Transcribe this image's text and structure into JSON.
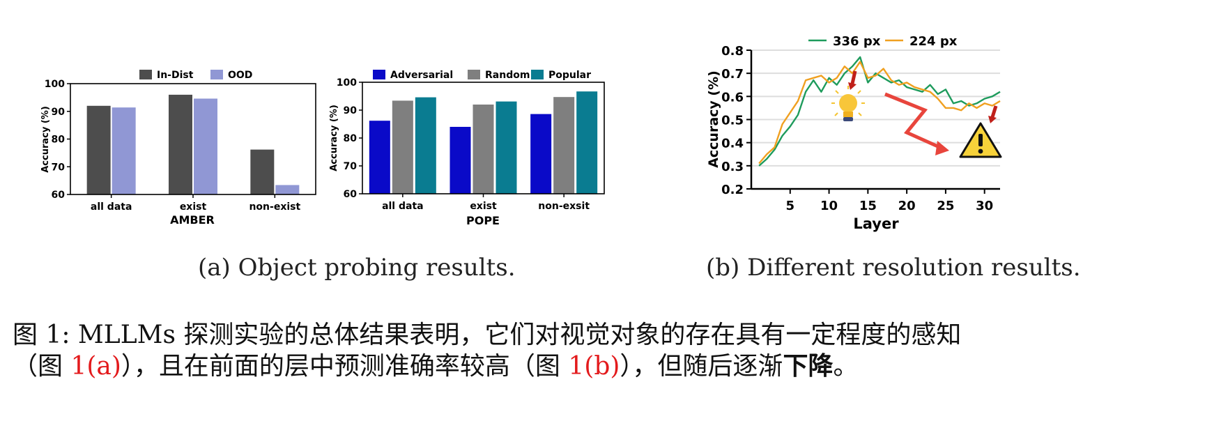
{
  "chart_data": [
    {
      "type": "bar",
      "xlabel": "AMBER",
      "ylabel": "Accuracy (%)",
      "ylim": [
        60,
        100
      ],
      "yticks": [
        60,
        70,
        80,
        90,
        100
      ],
      "categories": [
        "all data",
        "exist",
        "non-exist"
      ],
      "legend_position": "top",
      "series": [
        {
          "name": "In-Dist",
          "color": "#4d4d4d",
          "values": [
            92.0,
            96.0,
            76.2
          ]
        },
        {
          "name": "OOD",
          "color": "#9097d4",
          "values": [
            91.4,
            94.6,
            63.4
          ]
        }
      ]
    },
    {
      "type": "bar",
      "xlabel": "POPE",
      "ylabel": "Accuracy (%)",
      "ylim": [
        60,
        100
      ],
      "yticks": [
        60,
        70,
        80,
        90,
        100
      ],
      "categories": [
        "all data",
        "exist",
        "non-exsit"
      ],
      "legend_position": "top",
      "series": [
        {
          "name": "Adversarial",
          "color": "#0a0ac8",
          "values": [
            86.2,
            84.0,
            88.6
          ]
        },
        {
          "name": "Random",
          "color": "#7f7f7f",
          "values": [
            93.4,
            92.0,
            94.7
          ]
        },
        {
          "name": "Popular",
          "color": "#0a7c91",
          "values": [
            94.6,
            93.1,
            96.7
          ]
        }
      ]
    },
    {
      "type": "line",
      "xlabel": "Layer",
      "ylabel": "Accuracy (%)",
      "xlim": [
        0,
        32
      ],
      "ylim": [
        0.2,
        0.8
      ],
      "xticks": [
        5,
        10,
        15,
        20,
        25,
        30
      ],
      "yticks": [
        "0.2",
        "0.3",
        "0.4",
        "0.5",
        "0.6",
        "0.7",
        "0.8"
      ],
      "grid": true,
      "legend_position": "top",
      "x": [
        1,
        2,
        3,
        4,
        5,
        6,
        7,
        8,
        9,
        10,
        11,
        12,
        13,
        14,
        15,
        16,
        17,
        18,
        19,
        20,
        21,
        22,
        23,
        24,
        25,
        26,
        27,
        28,
        29,
        30,
        31,
        32
      ],
      "series": [
        {
          "name": "336 px",
          "color": "#1e9b5c",
          "values": [
            0.3,
            0.33,
            0.37,
            0.43,
            0.47,
            0.52,
            0.62,
            0.67,
            0.62,
            0.68,
            0.65,
            0.7,
            0.73,
            0.77,
            0.66,
            0.7,
            0.68,
            0.66,
            0.67,
            0.64,
            0.63,
            0.62,
            0.65,
            0.61,
            0.63,
            0.57,
            0.58,
            0.56,
            0.57,
            0.59,
            0.6,
            0.62
          ]
        },
        {
          "name": "224 px",
          "color": "#f0a020",
          "values": [
            0.31,
            0.35,
            0.38,
            0.48,
            0.53,
            0.58,
            0.67,
            0.68,
            0.69,
            0.66,
            0.68,
            0.73,
            0.7,
            0.75,
            0.68,
            0.69,
            0.72,
            0.67,
            0.65,
            0.66,
            0.64,
            0.63,
            0.62,
            0.59,
            0.55,
            0.55,
            0.54,
            0.57,
            0.55,
            0.57,
            0.56,
            0.58
          ]
        }
      ]
    }
  ],
  "captions": {
    "a": "(a) Object probing results.",
    "b": "(b) Different resolution results."
  },
  "figure_caption": {
    "line1": "图 1:  MLLMs 探测实验的总体结果表明，它们对视觉对象的存在具有一定程度的感知",
    "line2_part1": "（图 ",
    "line2_ref1": "1(a)",
    "line2_part2": "），且在前面的层中预测准确率较高（图 ",
    "line2_ref2": "1(b)",
    "line2_part3": "），但随后逐渐",
    "line2_bold": "下降",
    "line2_end": "。"
  },
  "icons": [
    "lightbulb-icon",
    "warning-icon",
    "red-arrow-icon",
    "zigzag-arrow-icon"
  ]
}
